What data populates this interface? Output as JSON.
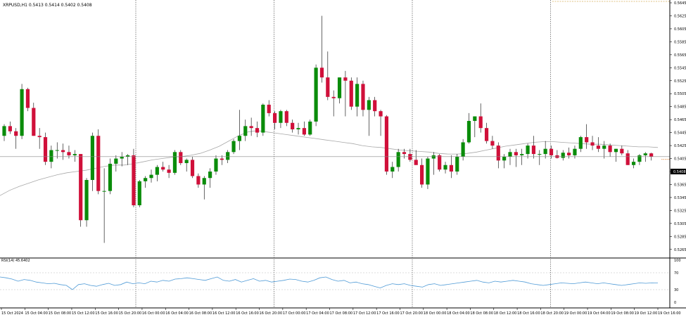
{
  "header": {
    "symbol_line": "XRPUSD,H1  0.5413 0.5414 0.5402 0.5408"
  },
  "current_price_label": "0.5408",
  "rsi_header": "RSI(14) 45.6402",
  "colors": {
    "bull": "#0a8c0a",
    "bear": "#d0103a",
    "wick": "#000000",
    "ma": "#a8a8a8",
    "rsi": "#4e9ad6",
    "grid_separator": "#333333",
    "current_price_line": "#888888",
    "current_price_arrow": "#e07b2a",
    "dotted_top": "#d6b05c"
  },
  "chart_data": [
    {
      "type": "candlestick",
      "title": "XRPUSD,H1",
      "timeframe": "H1",
      "ohlc_readout": {
        "open": 0.5413,
        "high": 0.5414,
        "low": 0.5402,
        "close": 0.5408
      },
      "ylim": [
        0.5255,
        0.5645
      ],
      "y_ticks": [
        "0.5645",
        "0.5625",
        "0.5605",
        "0.5585",
        "0.5565",
        "0.5545",
        "0.5525",
        "0.5505",
        "0.5485",
        "0.5465",
        "0.5445",
        "0.5425",
        "0.5405",
        "0.5385",
        "0.5365",
        "0.5345",
        "0.5325",
        "0.5305",
        "0.5285",
        "0.5265"
      ],
      "x_labels": [
        "15 Oct 2024",
        "15 Oct 04:00",
        "15 Oct 08:00",
        "15 Oct 12:00",
        "15 Oct 16:00",
        "15 Oct 20:00",
        "16 Oct 00:00",
        "16 Oct 04:00",
        "16 Oct 08:00",
        "16 Oct 12:00",
        "16 Oct 16:00",
        "16 Oct 20:00",
        "17 Oct 00:00",
        "17 Oct 04:00",
        "17 Oct 08:00",
        "17 Oct 12:00",
        "17 Oct 16:00",
        "17 Oct 20:00",
        "18 Oct 00:00",
        "18 Oct 04:00",
        "18 Oct 08:00",
        "18 Oct 12:00",
        "18 Oct 16:00",
        "18 Oct 20:00",
        "19 Oct 00:00",
        "19 Oct 04:00",
        "19 Oct 08:00",
        "19 Oct 12:00",
        "19 Oct 16:00"
      ],
      "candles": [
        [
          0.544,
          0.5458,
          0.5432,
          0.5455
        ],
        [
          0.5455,
          0.5462,
          0.5443,
          0.5447
        ],
        [
          0.5447,
          0.5452,
          0.542,
          0.544
        ],
        [
          0.544,
          0.552,
          0.5435,
          0.5512
        ],
        [
          0.5512,
          0.5514,
          0.5478,
          0.5483
        ],
        [
          0.5483,
          0.5491,
          0.544,
          0.544
        ],
        [
          0.544,
          0.5452,
          0.542,
          0.5438
        ],
        [
          0.5438,
          0.5445,
          0.5395,
          0.54
        ],
        [
          0.54,
          0.5425,
          0.539,
          0.5418
        ],
        [
          0.5418,
          0.543,
          0.5405,
          0.5418
        ],
        [
          0.5418,
          0.5428,
          0.5403,
          0.5415
        ],
        [
          0.5415,
          0.5425,
          0.5405,
          0.541
        ],
        [
          0.541,
          0.5418,
          0.54,
          0.5412
        ],
        [
          0.5412,
          0.5412,
          0.53,
          0.531
        ],
        [
          0.531,
          0.5375,
          0.53,
          0.5372
        ],
        [
          0.5372,
          0.5445,
          0.5355,
          0.544
        ],
        [
          0.544,
          0.545,
          0.535,
          0.5355
        ],
        [
          0.5355,
          0.539,
          0.5275,
          0.5355
        ],
        [
          0.5355,
          0.5405,
          0.535,
          0.5397
        ],
        [
          0.5397,
          0.541,
          0.5385,
          0.5405
        ],
        [
          0.5405,
          0.5415,
          0.5393,
          0.5408
        ],
        [
          0.5408,
          0.5412,
          0.5395,
          0.541
        ],
        [
          0.541,
          0.542,
          0.533,
          0.5333
        ],
        [
          0.5333,
          0.5372,
          0.533,
          0.537
        ],
        [
          0.537,
          0.5378,
          0.536,
          0.5375
        ],
        [
          0.5375,
          0.5388,
          0.5368,
          0.538
        ],
        [
          0.538,
          0.5395,
          0.537,
          0.5392
        ],
        [
          0.5392,
          0.54,
          0.5385,
          0.5388
        ],
        [
          0.5388,
          0.5395,
          0.5375,
          0.5383
        ],
        [
          0.5383,
          0.5418,
          0.538,
          0.5415
        ],
        [
          0.5415,
          0.5418,
          0.5395,
          0.5398
        ],
        [
          0.5398,
          0.5405,
          0.5385,
          0.5403
        ],
        [
          0.5403,
          0.5408,
          0.5375,
          0.5378
        ],
        [
          0.5378,
          0.5382,
          0.536,
          0.5365
        ],
        [
          0.5365,
          0.5378,
          0.5342,
          0.5375
        ],
        [
          0.5375,
          0.539,
          0.536,
          0.5385
        ],
        [
          0.5385,
          0.541,
          0.538,
          0.5405
        ],
        [
          0.5405,
          0.541,
          0.5395,
          0.5403
        ],
        [
          0.5403,
          0.5418,
          0.5398,
          0.5415
        ],
        [
          0.5415,
          0.5435,
          0.5412,
          0.5432
        ],
        [
          0.5432,
          0.548,
          0.5418,
          0.544
        ],
        [
          0.544,
          0.5465,
          0.5432,
          0.5455
        ],
        [
          0.5455,
          0.5468,
          0.544,
          0.5452
        ],
        [
          0.5452,
          0.5462,
          0.5438,
          0.5445
        ],
        [
          0.5445,
          0.549,
          0.544,
          0.5488
        ],
        [
          0.5488,
          0.5495,
          0.547,
          0.5475
        ],
        [
          0.5475,
          0.5478,
          0.545,
          0.546
        ],
        [
          0.546,
          0.548,
          0.5452,
          0.5478
        ],
        [
          0.5478,
          0.548,
          0.5455,
          0.546
        ],
        [
          0.546,
          0.5465,
          0.5445,
          0.545
        ],
        [
          0.545,
          0.546,
          0.5442,
          0.5452
        ],
        [
          0.5452,
          0.5462,
          0.544,
          0.5442
        ],
        [
          0.5442,
          0.5465,
          0.544,
          0.5462
        ],
        [
          0.5462,
          0.555,
          0.5455,
          0.5545
        ],
        [
          0.5545,
          0.5625,
          0.5522,
          0.553
        ],
        [
          0.553,
          0.557,
          0.5495,
          0.55
        ],
        [
          0.55,
          0.551,
          0.547,
          0.5498
        ],
        [
          0.5498,
          0.553,
          0.549,
          0.553
        ],
        [
          0.553,
          0.554,
          0.547,
          0.5525
        ],
        [
          0.5525,
          0.553,
          0.548,
          0.5485
        ],
        [
          0.5485,
          0.553,
          0.547,
          0.552
        ],
        [
          0.552,
          0.5525,
          0.547,
          0.548
        ],
        [
          0.548,
          0.55,
          0.544,
          0.5495
        ],
        [
          0.5495,
          0.55,
          0.547,
          0.5478
        ],
        [
          0.5478,
          0.548,
          0.544,
          0.547
        ],
        [
          0.547,
          0.5472,
          0.538,
          0.5385
        ],
        [
          0.5385,
          0.54,
          0.5375,
          0.5392
        ],
        [
          0.5392,
          0.542,
          0.5385,
          0.5415
        ],
        [
          0.5415,
          0.542,
          0.5405,
          0.5412
        ],
        [
          0.5412,
          0.542,
          0.54,
          0.5403
        ],
        [
          0.5403,
          0.5418,
          0.5398,
          0.5395
        ],
        [
          0.5395,
          0.5405,
          0.536,
          0.5365
        ],
        [
          0.5365,
          0.5408,
          0.5358,
          0.5405
        ],
        [
          0.5405,
          0.5415,
          0.538,
          0.541
        ],
        [
          0.541,
          0.5412,
          0.5385,
          0.5388
        ],
        [
          0.5388,
          0.54,
          0.5382,
          0.5395
        ],
        [
          0.5395,
          0.541,
          0.5375,
          0.5385
        ],
        [
          0.5385,
          0.5412,
          0.538,
          0.5408
        ],
        [
          0.5408,
          0.5435,
          0.5402,
          0.543
        ],
        [
          0.543,
          0.5475,
          0.5428,
          0.5463
        ],
        [
          0.5463,
          0.547,
          0.5438,
          0.547
        ],
        [
          0.547,
          0.549,
          0.5445,
          0.5452
        ],
        [
          0.5452,
          0.546,
          0.5428,
          0.5432
        ],
        [
          0.5432,
          0.544,
          0.542,
          0.5425
        ],
        [
          0.5425,
          0.543,
          0.539,
          0.5402
        ],
        [
          0.5402,
          0.5412,
          0.539,
          0.5408
        ],
        [
          0.5408,
          0.542,
          0.5395,
          0.5415
        ],
        [
          0.5415,
          0.542,
          0.5392,
          0.541
        ],
        [
          0.541,
          0.542,
          0.5395,
          0.5412
        ],
        [
          0.5412,
          0.5428,
          0.5405,
          0.5425
        ],
        [
          0.5425,
          0.544,
          0.5405,
          0.5412
        ],
        [
          0.5412,
          0.5418,
          0.5395,
          0.5412
        ],
        [
          0.5412,
          0.5432,
          0.5405,
          0.542
        ],
        [
          0.542,
          0.5425,
          0.5405,
          0.541
        ],
        [
          0.541,
          0.5418,
          0.5405,
          0.5406
        ],
        [
          0.5406,
          0.5418,
          0.5402,
          0.5414
        ],
        [
          0.5414,
          0.5422,
          0.5405,
          0.541
        ],
        [
          0.541,
          0.5425,
          0.5405,
          0.542
        ],
        [
          0.542,
          0.544,
          0.5415,
          0.5438
        ],
        [
          0.5438,
          0.5458,
          0.542,
          0.543
        ],
        [
          0.543,
          0.544,
          0.5418,
          0.5425
        ],
        [
          0.5425,
          0.5438,
          0.5415,
          0.542
        ],
        [
          0.542,
          0.5432,
          0.5405,
          0.5425
        ],
        [
          0.5425,
          0.5428,
          0.5408,
          0.5415
        ],
        [
          0.5415,
          0.542,
          0.54,
          0.542
        ],
        [
          0.542,
          0.5425,
          0.541,
          0.5413
        ],
        [
          0.5413,
          0.5418,
          0.5395,
          0.5395
        ],
        [
          0.5395,
          0.5405,
          0.539,
          0.54
        ],
        [
          0.54,
          0.5412,
          0.5395,
          0.541
        ],
        [
          0.541,
          0.5415,
          0.54,
          0.5413
        ],
        [
          0.5413,
          0.5414,
          0.5402,
          0.5408
        ]
      ],
      "moving_average": [
        0.5348,
        0.5356,
        0.5362,
        0.5367,
        0.5372,
        0.5376,
        0.538,
        0.5383,
        0.5385,
        0.5387,
        0.539,
        0.5393,
        0.5395,
        0.5395,
        0.5397,
        0.54,
        0.5403,
        0.5405,
        0.5407,
        0.5408,
        0.541,
        0.5413,
        0.5418,
        0.5424,
        0.5432,
        0.544,
        0.5446,
        0.5448,
        0.5446,
        0.5444,
        0.5442,
        0.544,
        0.5438,
        0.5436,
        0.5434,
        0.5432,
        0.543,
        0.5428,
        0.5425,
        0.5423,
        0.5422,
        0.542,
        0.5418,
        0.5417,
        0.5416,
        0.5415,
        0.5413,
        0.5412,
        0.5412,
        0.5413,
        0.5415,
        0.5418,
        0.5421,
        0.5424,
        0.5426,
        0.5428,
        0.543,
        0.5431,
        0.5431,
        0.543,
        0.5429,
        0.5428,
        0.5427,
        0.5427,
        0.5426,
        0.5425,
        0.5424,
        0.5423,
        0.5423,
        0.5422
      ],
      "current_price": 0.5408
    },
    {
      "type": "line",
      "title": "RSI(14) 45.6402",
      "ylim": [
        0,
        100
      ],
      "y_ticks": [
        "100",
        "70",
        "30",
        "0"
      ],
      "levels": [
        70,
        30
      ],
      "values": [
        60,
        58,
        55,
        50,
        54,
        52,
        48,
        46,
        44,
        45,
        42,
        40,
        30,
        42,
        44,
        40,
        38,
        42,
        45,
        40,
        42,
        48,
        44,
        46,
        44,
        50,
        48,
        52,
        50,
        55,
        56,
        58,
        56,
        54,
        52,
        56,
        60,
        52,
        50,
        54,
        48,
        52,
        56,
        50,
        52,
        48,
        50,
        52,
        55,
        54,
        50,
        48,
        52,
        58,
        60,
        54,
        50,
        52,
        46,
        48,
        44,
        42,
        38,
        34,
        40,
        44,
        42,
        44,
        40,
        38,
        36,
        42,
        44,
        40,
        42,
        44,
        46,
        48,
        50,
        52,
        48,
        46,
        50,
        48,
        50,
        52,
        50,
        48,
        44,
        42,
        40,
        42,
        44,
        46,
        45,
        44,
        46,
        48,
        46,
        44,
        46,
        44,
        42,
        40,
        42,
        44,
        46,
        45,
        46,
        45.6402
      ]
    }
  ]
}
